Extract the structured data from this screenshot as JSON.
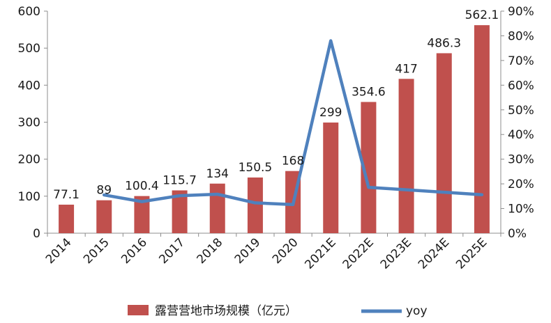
{
  "chart_data": {
    "type": "bar",
    "categories": [
      "2014",
      "2015",
      "2016",
      "2017",
      "2018",
      "2019",
      "2020",
      "2021E",
      "2022E",
      "2023E",
      "2024E",
      "2025E"
    ],
    "series": [
      {
        "name": "露营营地市场规模（亿元）",
        "type": "bar",
        "axis": "left",
        "color": "#C0504D",
        "values": [
          77.1,
          89,
          100.4,
          115.7,
          134,
          150.5,
          168,
          299,
          354.6,
          417,
          486.3,
          562.1
        ],
        "labels": [
          "77.1",
          "89",
          "100.4",
          "115.7",
          "134",
          "150.5",
          "168",
          "299",
          "354.6",
          "417",
          "486.3",
          "562.1"
        ]
      },
      {
        "name": "yoy",
        "type": "line",
        "axis": "right",
        "color": "#4F81BD",
        "values": [
          null,
          0.155,
          0.128,
          0.152,
          0.158,
          0.123,
          0.116,
          0.78,
          0.186,
          0.176,
          0.166,
          0.156
        ]
      }
    ],
    "y_left": {
      "min": 0,
      "max": 600,
      "ticks": [
        0,
        100,
        200,
        300,
        400,
        500,
        600
      ],
      "tick_labels": [
        "0",
        "100",
        "200",
        "300",
        "400",
        "500",
        "600"
      ]
    },
    "y_right": {
      "min": 0,
      "max": 0.9,
      "ticks": [
        0,
        0.1,
        0.2,
        0.3,
        0.4,
        0.5,
        0.6,
        0.7,
        0.8,
        0.9
      ],
      "tick_labels": [
        "0%",
        "10%",
        "20%",
        "30%",
        "40%",
        "50%",
        "60%",
        "70%",
        "80%",
        "90%"
      ]
    },
    "title": "",
    "xlabel": "",
    "ylabel": "",
    "grid": false,
    "legend": "bottom"
  }
}
